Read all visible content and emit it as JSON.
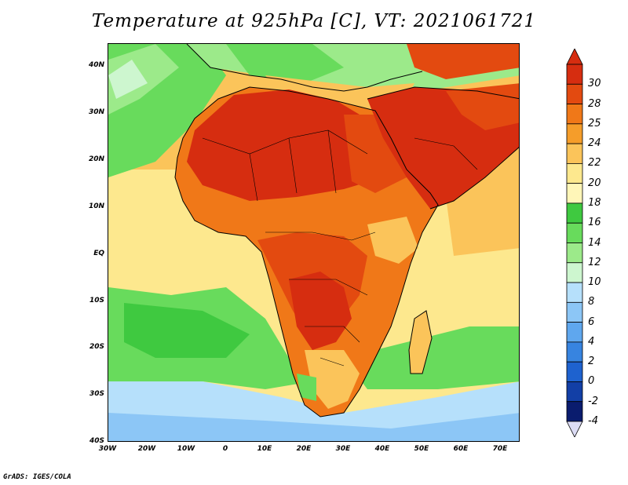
{
  "title": "Temperature at 925hPa [C], VT: 2021061721",
  "credit": "GrADS: IGES/COLA",
  "lat_ticks": [
    "40N",
    "30N",
    "20N",
    "10N",
    "EQ",
    "10S",
    "20S",
    "30S",
    "40S"
  ],
  "lon_ticks": [
    "30W",
    "20W",
    "10W",
    "0",
    "10E",
    "20E",
    "30E",
    "40E",
    "50E",
    "60E",
    "70E"
  ],
  "colorbar": {
    "labels": [
      "30",
      "28",
      "25",
      "24",
      "22",
      "20",
      "18",
      "16",
      "14",
      "12",
      "10",
      "8",
      "6",
      "4",
      "2",
      "0",
      "-2",
      "-4"
    ],
    "colors": [
      "#d62d10",
      "#e34a10",
      "#f07818",
      "#f59d2a",
      "#fbc45a",
      "#fde88e",
      "#fff6b8",
      "#3fc940",
      "#68db5c",
      "#9cea8a",
      "#cdf6cf",
      "#b6e0fb",
      "#8cc6f6",
      "#5fa7ee",
      "#3784e0",
      "#1e62cf",
      "#123fa6",
      "#0a1c6e"
    ]
  },
  "map_colors": {
    "ocean_warm": "#fbc45a",
    "ocean_mild": "#fde88e",
    "ocean_cool": "#68db5c",
    "ocean_cold": "#9cea8a",
    "ocean_colder": "#b6e0fb",
    "ocean_coldest": "#8cc6f6",
    "desert_hot": "#d62d10",
    "land_hot": "#e34a10",
    "land_warm": "#f07818"
  }
}
